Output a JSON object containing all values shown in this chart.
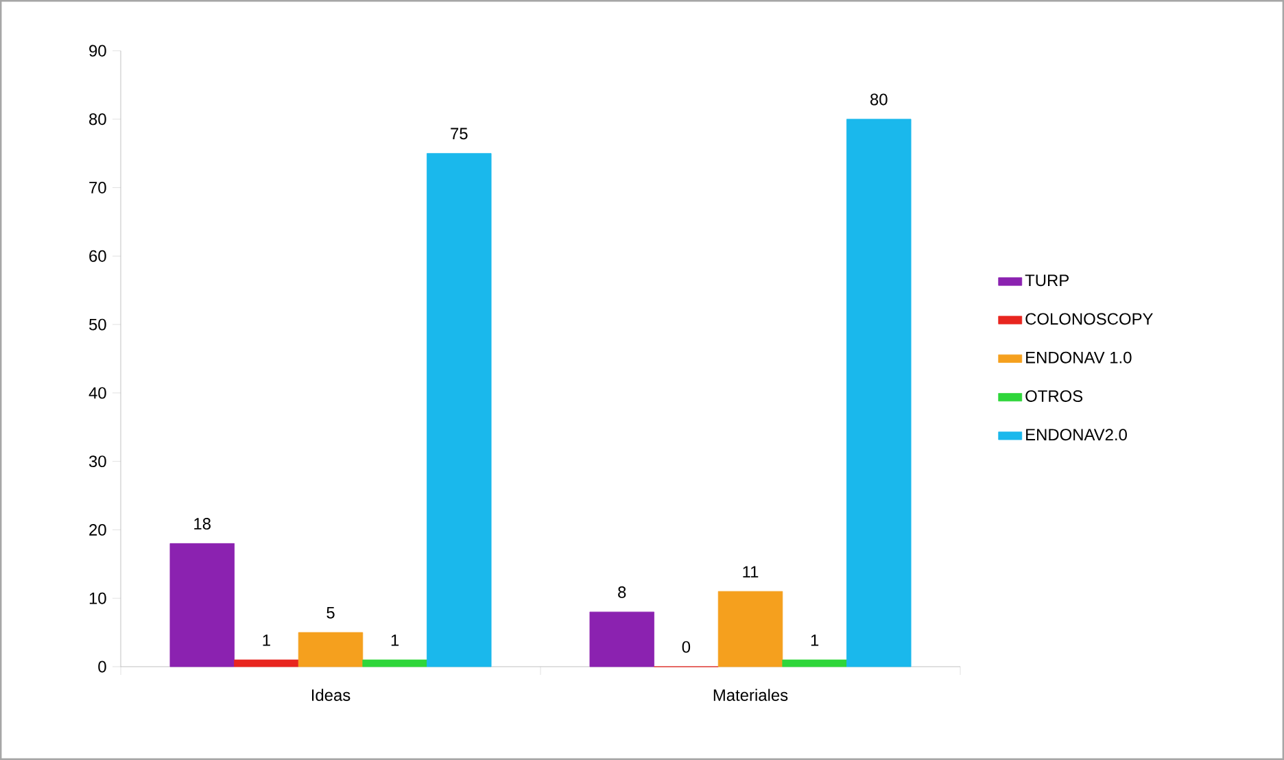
{
  "chart_data": {
    "type": "bar",
    "categories": [
      "Ideas",
      "Materiales"
    ],
    "series": [
      {
        "name": "TURP",
        "color": "#8b22b0",
        "values": [
          18,
          8
        ]
      },
      {
        "name": "COLONOSCOPY",
        "color": "#e8251f",
        "values": [
          1,
          0
        ]
      },
      {
        "name": "ENDONAV 1.0",
        "color": "#f5a01e",
        "values": [
          5,
          11
        ]
      },
      {
        "name": "OTROS",
        "color": "#2ed63a",
        "values": [
          1,
          1
        ]
      },
      {
        "name": "ENDONAV2.0",
        "color": "#1ab8ec",
        "values": [
          75,
          80
        ]
      }
    ],
    "ylim": [
      0,
      90
    ],
    "yticks": [
      0,
      10,
      20,
      30,
      40,
      50,
      60,
      70,
      80,
      90
    ],
    "data_labels": true,
    "legend": "right"
  }
}
